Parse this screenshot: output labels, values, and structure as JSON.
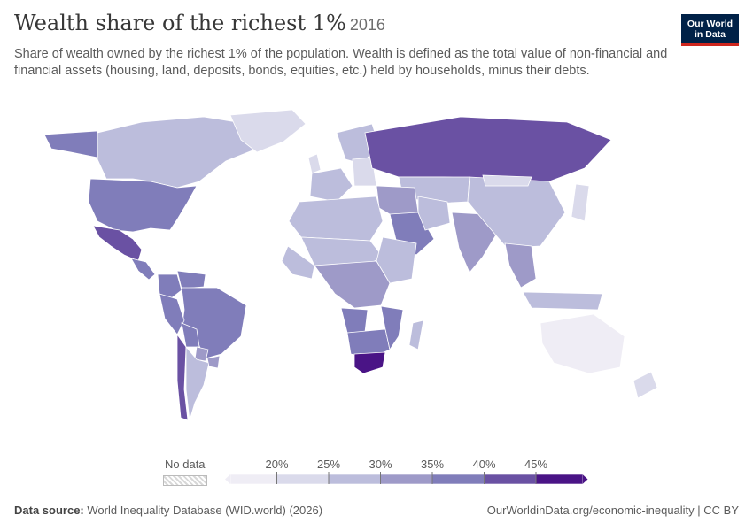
{
  "header": {
    "title": "Wealth share of the richest 1%",
    "year": "2016",
    "subtitle": "Share of wealth owned by the richest 1% of the population. Wealth is defined as the total value of non-financial and financial assets (housing, land, deposits, bonds, equities, etc.) held by households, minus their debts."
  },
  "logo": {
    "line1": "Our World",
    "line2": "in Data",
    "bg": "#002147",
    "accent": "#ce261e"
  },
  "legend": {
    "no_data_label": "No data",
    "ticks": [
      "20%",
      "25%",
      "30%",
      "35%",
      "40%",
      "45%"
    ],
    "colors": [
      "#efedf5",
      "#dadaeb",
      "#bcbddc",
      "#9e9ac8",
      "#807dba",
      "#6a51a3",
      "#4a1486"
    ]
  },
  "footer": {
    "source_label": "Data source:",
    "source_text": "World Inequality Database (WID.world) (2026)",
    "url": "OurWorldinData.org/economic-inequality | CC BY"
  },
  "colors": {
    "ocean": "#ffffff",
    "border": "#ffffff"
  },
  "map_regions": [
    {
      "name": "Canada",
      "bin": 2
    },
    {
      "name": "United States",
      "bin": 4
    },
    {
      "name": "Mexico",
      "bin": 5
    },
    {
      "name": "Central America",
      "bin": 4
    },
    {
      "name": "Greenland",
      "bin": 1
    },
    {
      "name": "Alaska",
      "bin": 4
    },
    {
      "name": "Colombia",
      "bin": 4
    },
    {
      "name": "Venezuela",
      "bin": 4
    },
    {
      "name": "Brazil",
      "bin": 4
    },
    {
      "name": "Peru",
      "bin": 4
    },
    {
      "name": "Bolivia",
      "bin": 4
    },
    {
      "name": "Paraguay",
      "bin": 3
    },
    {
      "name": "Chile",
      "bin": 5
    },
    {
      "name": "Argentina",
      "bin": 2
    },
    {
      "name": "Uruguay",
      "bin": 3
    },
    {
      "name": "United Kingdom",
      "bin": 1
    },
    {
      "name": "Western Europe",
      "bin": 2
    },
    {
      "name": "Scandinavia",
      "bin": 2
    },
    {
      "name": "Eastern Europe",
      "bin": 1
    },
    {
      "name": "Russia",
      "bin": 5
    },
    {
      "name": "Central Asia",
      "bin": 2
    },
    {
      "name": "Middle East",
      "bin": 3
    },
    {
      "name": "Saudi Arabia",
      "bin": 4
    },
    {
      "name": "Iran",
      "bin": 2
    },
    {
      "name": "India",
      "bin": 3
    },
    {
      "name": "China",
      "bin": 2
    },
    {
      "name": "Mongolia",
      "bin": 1
    },
    {
      "name": "Southeast Asia",
      "bin": 3
    },
    {
      "name": "Indonesia",
      "bin": 2
    },
    {
      "name": "Japan",
      "bin": 1
    },
    {
      "name": "Australia",
      "bin": 0
    },
    {
      "name": "New Zealand",
      "bin": 1
    },
    {
      "name": "North Africa",
      "bin": 2
    },
    {
      "name": "Sahel",
      "bin": 2
    },
    {
      "name": "West Africa",
      "bin": 2
    },
    {
      "name": "East Africa",
      "bin": 2
    },
    {
      "name": "Central Africa",
      "bin": 3
    },
    {
      "name": "Angola",
      "bin": 4
    },
    {
      "name": "Southern Africa",
      "bin": 4
    },
    {
      "name": "Mozambique",
      "bin": 4
    },
    {
      "name": "South Africa",
      "bin": 6
    },
    {
      "name": "Madagascar",
      "bin": 2
    }
  ]
}
